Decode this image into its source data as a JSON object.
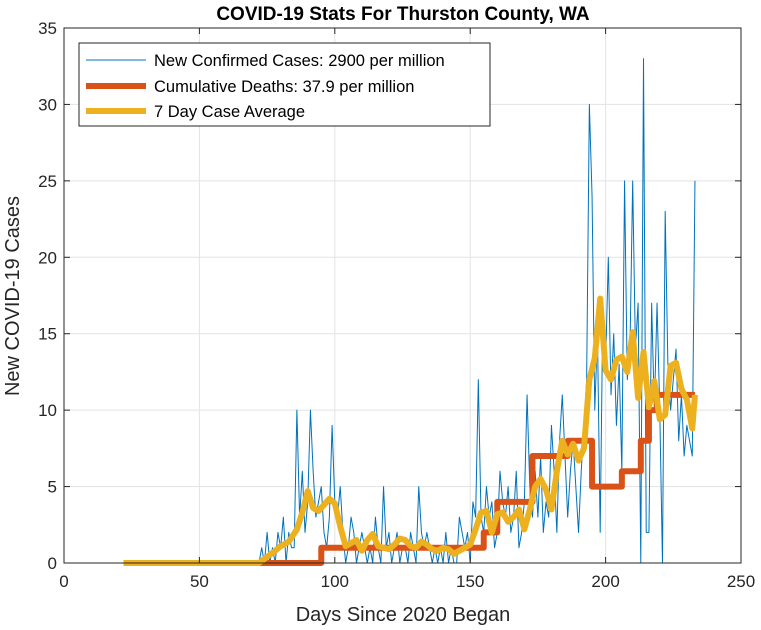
{
  "chart_data": {
    "type": "line",
    "title": "COVID-19 Stats For Thurston County, WA",
    "xlabel": "Days Since 2020 Began",
    "ylabel": "New COVID-19 Cases",
    "xlim": [
      0,
      250
    ],
    "ylim": [
      0,
      35
    ],
    "xticks": [
      0,
      50,
      100,
      150,
      200,
      250
    ],
    "yticks": [
      0,
      5,
      10,
      15,
      20,
      25,
      30,
      35
    ],
    "grid": true,
    "legend_position": "top-left",
    "series": [
      {
        "name": "New Confirmed Cases: 2900 per million",
        "color": "#0072BD",
        "x": [
          22,
          72,
          73,
          74,
          75,
          76,
          77,
          78,
          79,
          80,
          81,
          82,
          83,
          84,
          85,
          86,
          87,
          88,
          89,
          90,
          91,
          92,
          93,
          94,
          95,
          96,
          97,
          98,
          99,
          100,
          101,
          102,
          103,
          104,
          105,
          106,
          107,
          108,
          109,
          110,
          111,
          112,
          113,
          114,
          115,
          116,
          117,
          118,
          119,
          120,
          121,
          122,
          123,
          124,
          125,
          126,
          127,
          128,
          129,
          130,
          131,
          132,
          133,
          134,
          135,
          136,
          137,
          138,
          139,
          140,
          141,
          142,
          143,
          144,
          145,
          146,
          147,
          148,
          149,
          150,
          151,
          152,
          153,
          154,
          155,
          156,
          157,
          158,
          159,
          160,
          161,
          162,
          163,
          164,
          165,
          166,
          167,
          168,
          169,
          170,
          171,
          172,
          173,
          174,
          175,
          176,
          177,
          178,
          179,
          180,
          181,
          182,
          183,
          184,
          185,
          186,
          187,
          188,
          189,
          190,
          191,
          192,
          193,
          194,
          195,
          196,
          197,
          198,
          199,
          200,
          201,
          202,
          203,
          204,
          205,
          206,
          207,
          208,
          209,
          210,
          211,
          212,
          213,
          214,
          215,
          216,
          217,
          218,
          219,
          220,
          221,
          222,
          223,
          224,
          225,
          226,
          227,
          228,
          229,
          230,
          231,
          232,
          233
        ],
        "values": [
          0,
          0,
          1,
          0,
          2,
          0,
          1,
          0,
          2,
          1,
          3,
          0,
          2,
          1,
          1,
          10,
          3,
          6,
          2,
          4,
          10,
          6,
          3,
          4,
          5,
          2,
          1,
          3,
          9,
          4,
          3,
          5,
          2,
          0,
          1,
          3,
          2,
          0,
          1,
          2,
          1,
          0,
          1,
          0,
          3,
          1,
          0,
          5,
          1,
          2,
          0,
          1,
          2,
          0,
          1,
          1,
          0,
          2,
          1,
          0,
          5,
          2,
          1,
          2,
          1,
          0,
          1,
          0,
          1,
          0,
          2,
          0,
          1,
          0,
          0,
          3,
          2,
          1,
          2,
          0,
          4,
          3,
          12,
          3,
          2,
          5,
          3,
          4,
          1,
          2,
          6,
          4,
          3,
          5,
          2,
          3,
          6,
          1,
          2,
          4,
          11,
          5,
          3,
          6,
          3,
          7,
          2,
          4,
          3,
          9,
          6,
          2,
          8,
          11,
          7,
          3,
          6,
          8,
          5,
          2,
          6,
          9,
          12,
          30,
          24,
          10,
          15,
          2,
          17,
          13,
          20,
          11,
          15,
          9,
          13,
          6,
          25,
          12,
          14,
          25,
          14,
          17,
          0,
          33,
          2,
          2,
          17,
          10,
          17,
          10,
          0,
          23,
          13,
          10,
          12,
          14,
          8,
          11,
          7,
          9,
          8,
          7,
          25
        ]
      },
      {
        "name": "Cumulative Deaths: 37.9 per million",
        "color": "#D95319",
        "x": [
          22,
          95,
          95,
          150,
          150,
          155,
          155,
          160,
          160,
          173,
          173,
          186,
          186,
          195,
          195,
          206,
          206,
          210,
          210,
          213,
          213,
          216,
          216,
          219,
          219,
          223,
          223,
          233
        ],
        "values": [
          0,
          0,
          1,
          1,
          1,
          1,
          2,
          2,
          4,
          4,
          7,
          7,
          8,
          8,
          5,
          5,
          6,
          6,
          6,
          6,
          8,
          8,
          10,
          10,
          11,
          11,
          11,
          11
        ]
      },
      {
        "name": "7 Day Case Average",
        "color": "#EDB120",
        "x": [
          22,
          72,
          75,
          78,
          80,
          83,
          86,
          88,
          90,
          92,
          94,
          96,
          98,
          100,
          102,
          104,
          106,
          108,
          110,
          112,
          114,
          116,
          118,
          120,
          122,
          124,
          126,
          128,
          130,
          132,
          134,
          136,
          138,
          140,
          142,
          144,
          146,
          148,
          150,
          152,
          154,
          156,
          158,
          160,
          162,
          164,
          166,
          168,
          170,
          172,
          174,
          176,
          178,
          180,
          182,
          184,
          186,
          188,
          190,
          192,
          194,
          196,
          198,
          200,
          202,
          204,
          206,
          208,
          210,
          212,
          214,
          216,
          218,
          220,
          222,
          224,
          226,
          228,
          230,
          232,
          233
        ],
        "values": [
          0,
          0,
          0.4,
          0.8,
          1.1,
          1.4,
          2.2,
          3.3,
          4.7,
          3.6,
          3.4,
          3.8,
          4.2,
          3.9,
          2.4,
          1.1,
          1.3,
          1.5,
          0.8,
          1.5,
          1.9,
          1.1,
          1.0,
          0.9,
          1.2,
          1.6,
          1.5,
          1.1,
          1.0,
          1.4,
          1.2,
          0.9,
          0.8,
          1.0,
          0.9,
          0.6,
          0.8,
          1.0,
          1.2,
          2.2,
          3.3,
          3.4,
          2.0,
          3.2,
          3.3,
          2.7,
          3.0,
          3.5,
          2.2,
          3.5,
          5.0,
          5.5,
          4.8,
          3.5,
          6.0,
          8.0,
          7.1,
          7.8,
          6.7,
          7.5,
          12.0,
          13.4,
          17.3,
          12.6,
          12.0,
          13.3,
          13.5,
          12.5,
          15.1,
          10.8,
          13.8,
          10.2,
          11.9,
          9.4,
          9.7,
          12.9,
          13.1,
          11.4,
          10.7,
          8.8,
          11.0
        ]
      }
    ]
  }
}
